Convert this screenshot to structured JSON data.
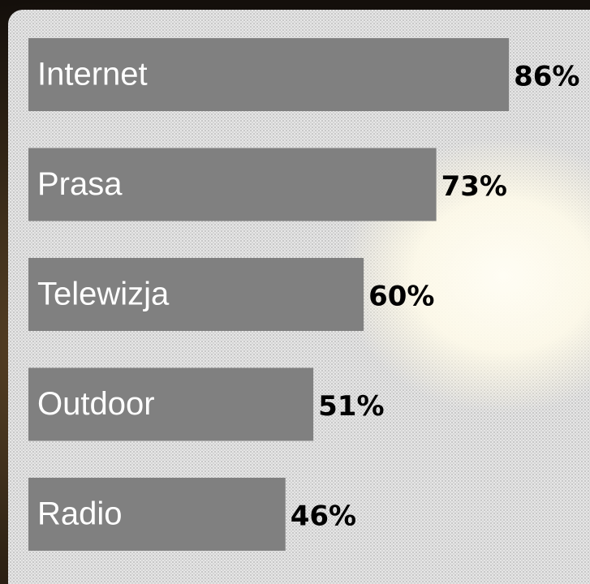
{
  "chart_data": {
    "type": "bar",
    "orientation": "horizontal",
    "categories": [
      "Internet",
      "Prasa",
      "Telewizja",
      "Outdoor",
      "Radio"
    ],
    "values": [
      86,
      73,
      60,
      51,
      46
    ],
    "value_labels": [
      "86%",
      "73%",
      "60%",
      "51%",
      "46%"
    ],
    "color": "#808080"
  }
}
